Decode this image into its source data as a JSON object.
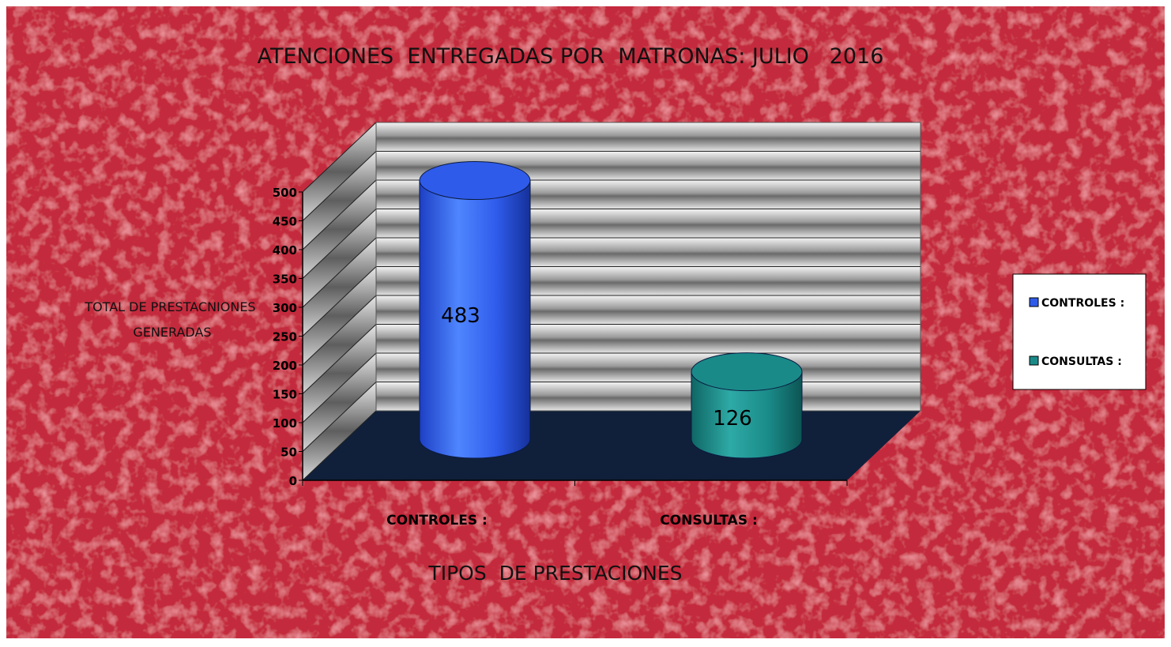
{
  "chart_data": {
    "type": "bar",
    "title": "ATENCIONES  ENTREGADAS POR  MATRONAS: JULIO   2016",
    "categories": [
      "CONTROLES :",
      "CONSULTAS :"
    ],
    "values": [
      483,
      126
    ],
    "data_labels": [
      "483",
      "126"
    ],
    "xlabel": "TIPOS  DE PRESTACIONES",
    "ylabel_lines": [
      "TOTAL DE PRESTACNIONES",
      "GENERADAS"
    ],
    "ylim": [
      0,
      500
    ],
    "yticks": [
      0,
      50,
      100,
      150,
      200,
      250,
      300,
      350,
      400,
      450,
      500
    ],
    "grid": true,
    "style": "3d-cylinder",
    "legend_position": "right",
    "legend": [
      "CONTROLES :",
      "CONSULTAS :"
    ],
    "colors": {
      "controles": "#2f5bea",
      "consultas": "#1a8a88",
      "background": "#c42a3c",
      "floor": "#10203a"
    }
  }
}
